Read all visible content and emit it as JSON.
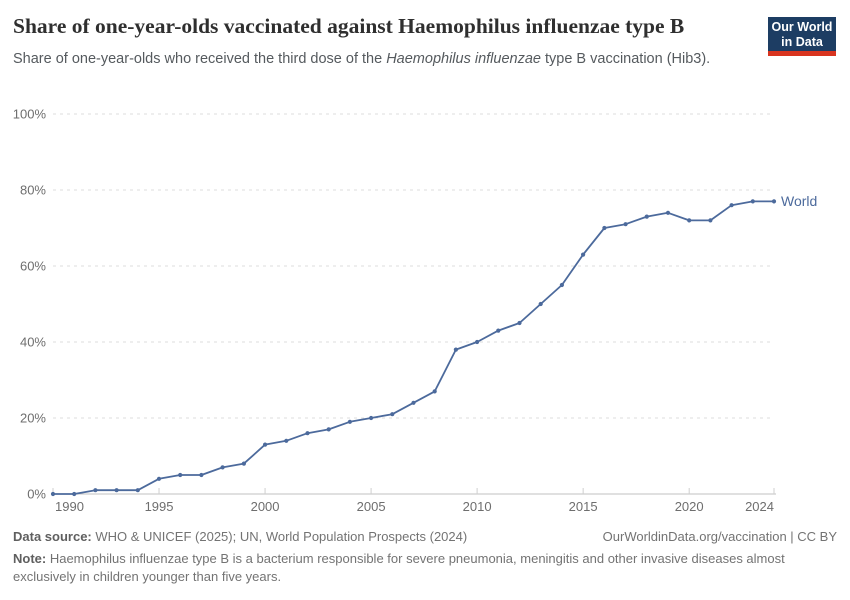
{
  "header": {
    "title": "Share of one-year-olds vaccinated against Haemophilus influenzae type B",
    "subtitle_prefix": "Share of one-year-olds who received the third dose of the ",
    "subtitle_italic": "Haemophilus influenzae",
    "subtitle_suffix": " type B vaccination (Hib3).",
    "logo_line1": "Our World",
    "logo_line2": "in Data",
    "logo_bg_color": "#1d3d63",
    "logo_accent_color": "#d8341f"
  },
  "chart_data": {
    "type": "line",
    "title": "Share of one-year-olds vaccinated against Haemophilus influenzae type B",
    "unit": "%",
    "x": [
      1990,
      1991,
      1992,
      1993,
      1994,
      1995,
      1996,
      1997,
      1998,
      1999,
      2000,
      2001,
      2002,
      2003,
      2004,
      2005,
      2006,
      2007,
      2008,
      2009,
      2010,
      2011,
      2012,
      2013,
      2014,
      2015,
      2016,
      2017,
      2018,
      2019,
      2020,
      2021,
      2022,
      2023,
      2024
    ],
    "series": [
      {
        "name": "World",
        "color": "#4c6a9c",
        "values": [
          0,
          0,
          1,
          1,
          1,
          4,
          5,
          5,
          7,
          8,
          13,
          14,
          16,
          17,
          19,
          20,
          21,
          24,
          27,
          38,
          40,
          43,
          45,
          50,
          55,
          63,
          70,
          71,
          73,
          74,
          72,
          72,
          76,
          77,
          77
        ]
      }
    ],
    "x_ticks": [
      1990,
      1995,
      2000,
      2005,
      2010,
      2015,
      2020,
      2024
    ],
    "y_tick_labels": [
      "0%",
      "20%",
      "40%",
      "60%",
      "80%",
      "100%"
    ],
    "xlim": [
      1990,
      2024
    ],
    "ylim": [
      0,
      100
    ],
    "grid": "horizontal-dashed",
    "legend": "line-end-label"
  },
  "footer": {
    "datasource_label": "Data source:",
    "datasource_text": " WHO & UNICEF (2025); UN, World Population Prospects (2024)",
    "attribution": "OurWorldinData.org/vaccination | CC BY",
    "note_label": "Note:",
    "note_text": " Haemophilus influenzae type B is a bacterium responsible for severe pneumonia, meningitis and other invasive diseases almost exclusively in children younger than five years."
  }
}
